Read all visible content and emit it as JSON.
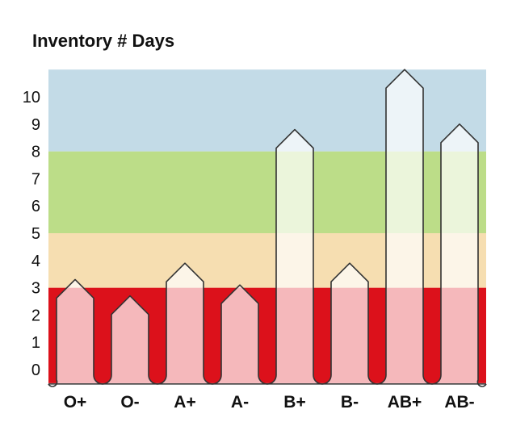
{
  "chart_data": {
    "type": "bar",
    "title": "Inventory # Days",
    "xlabel": "",
    "ylabel": "",
    "categories": [
      "O+",
      "O-",
      "A+",
      "A-",
      "B+",
      "B-",
      "AB+",
      "AB-"
    ],
    "values": [
      3.3,
      2.7,
      3.9,
      3.1,
      8.8,
      3.9,
      11.0,
      9.0
    ],
    "yticks": [
      "0",
      "1",
      "2",
      "3",
      "4",
      "5",
      "6",
      "7",
      "8",
      "9",
      "10"
    ],
    "ylim": [
      -0.5,
      11
    ],
    "grid": false,
    "bands": [
      {
        "from": -0.5,
        "to": 3,
        "color": "#dc111b"
      },
      {
        "from": 3,
        "to": 5,
        "color": "#f6deb1"
      },
      {
        "from": 5,
        "to": 8,
        "color": "#bcdd88"
      },
      {
        "from": 8,
        "to": 11,
        "color": "#c3dbe7"
      }
    ],
    "bar_overlay_color": "#ffffff"
  }
}
